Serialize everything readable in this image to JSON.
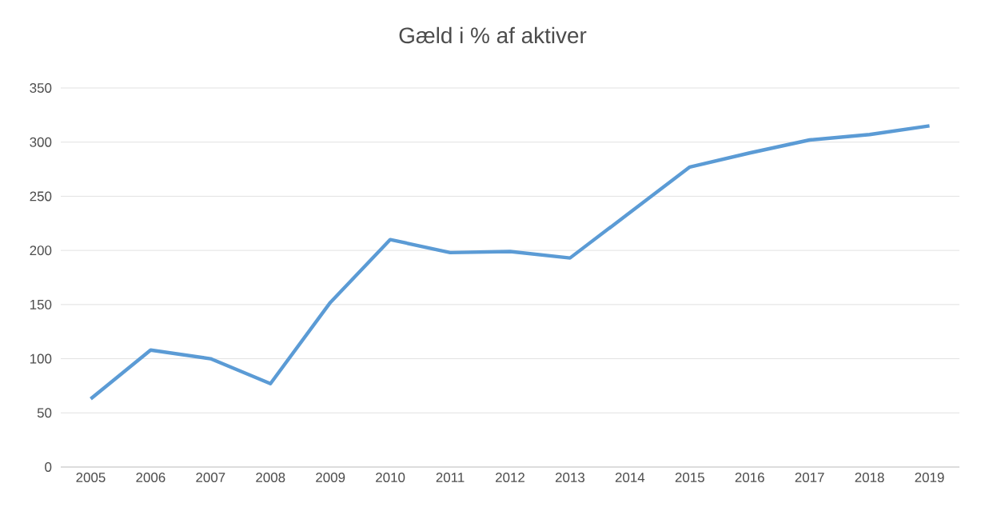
{
  "chart_data": {
    "type": "line",
    "title": "Gæld i % af aktiver",
    "categories": [
      "2005",
      "2006",
      "2007",
      "2008",
      "2009",
      "2010",
      "2011",
      "2012",
      "2013",
      "2014",
      "2015",
      "2016",
      "2017",
      "2018",
      "2019"
    ],
    "values": [
      63,
      108,
      100,
      77,
      152,
      210,
      198,
      199,
      193,
      235,
      277,
      290,
      302,
      307,
      315
    ],
    "color": "#5b9bd5",
    "ylim": [
      0,
      350
    ],
    "yticks": [
      0,
      50,
      100,
      150,
      200,
      250,
      300,
      350
    ],
    "grid": "y"
  }
}
